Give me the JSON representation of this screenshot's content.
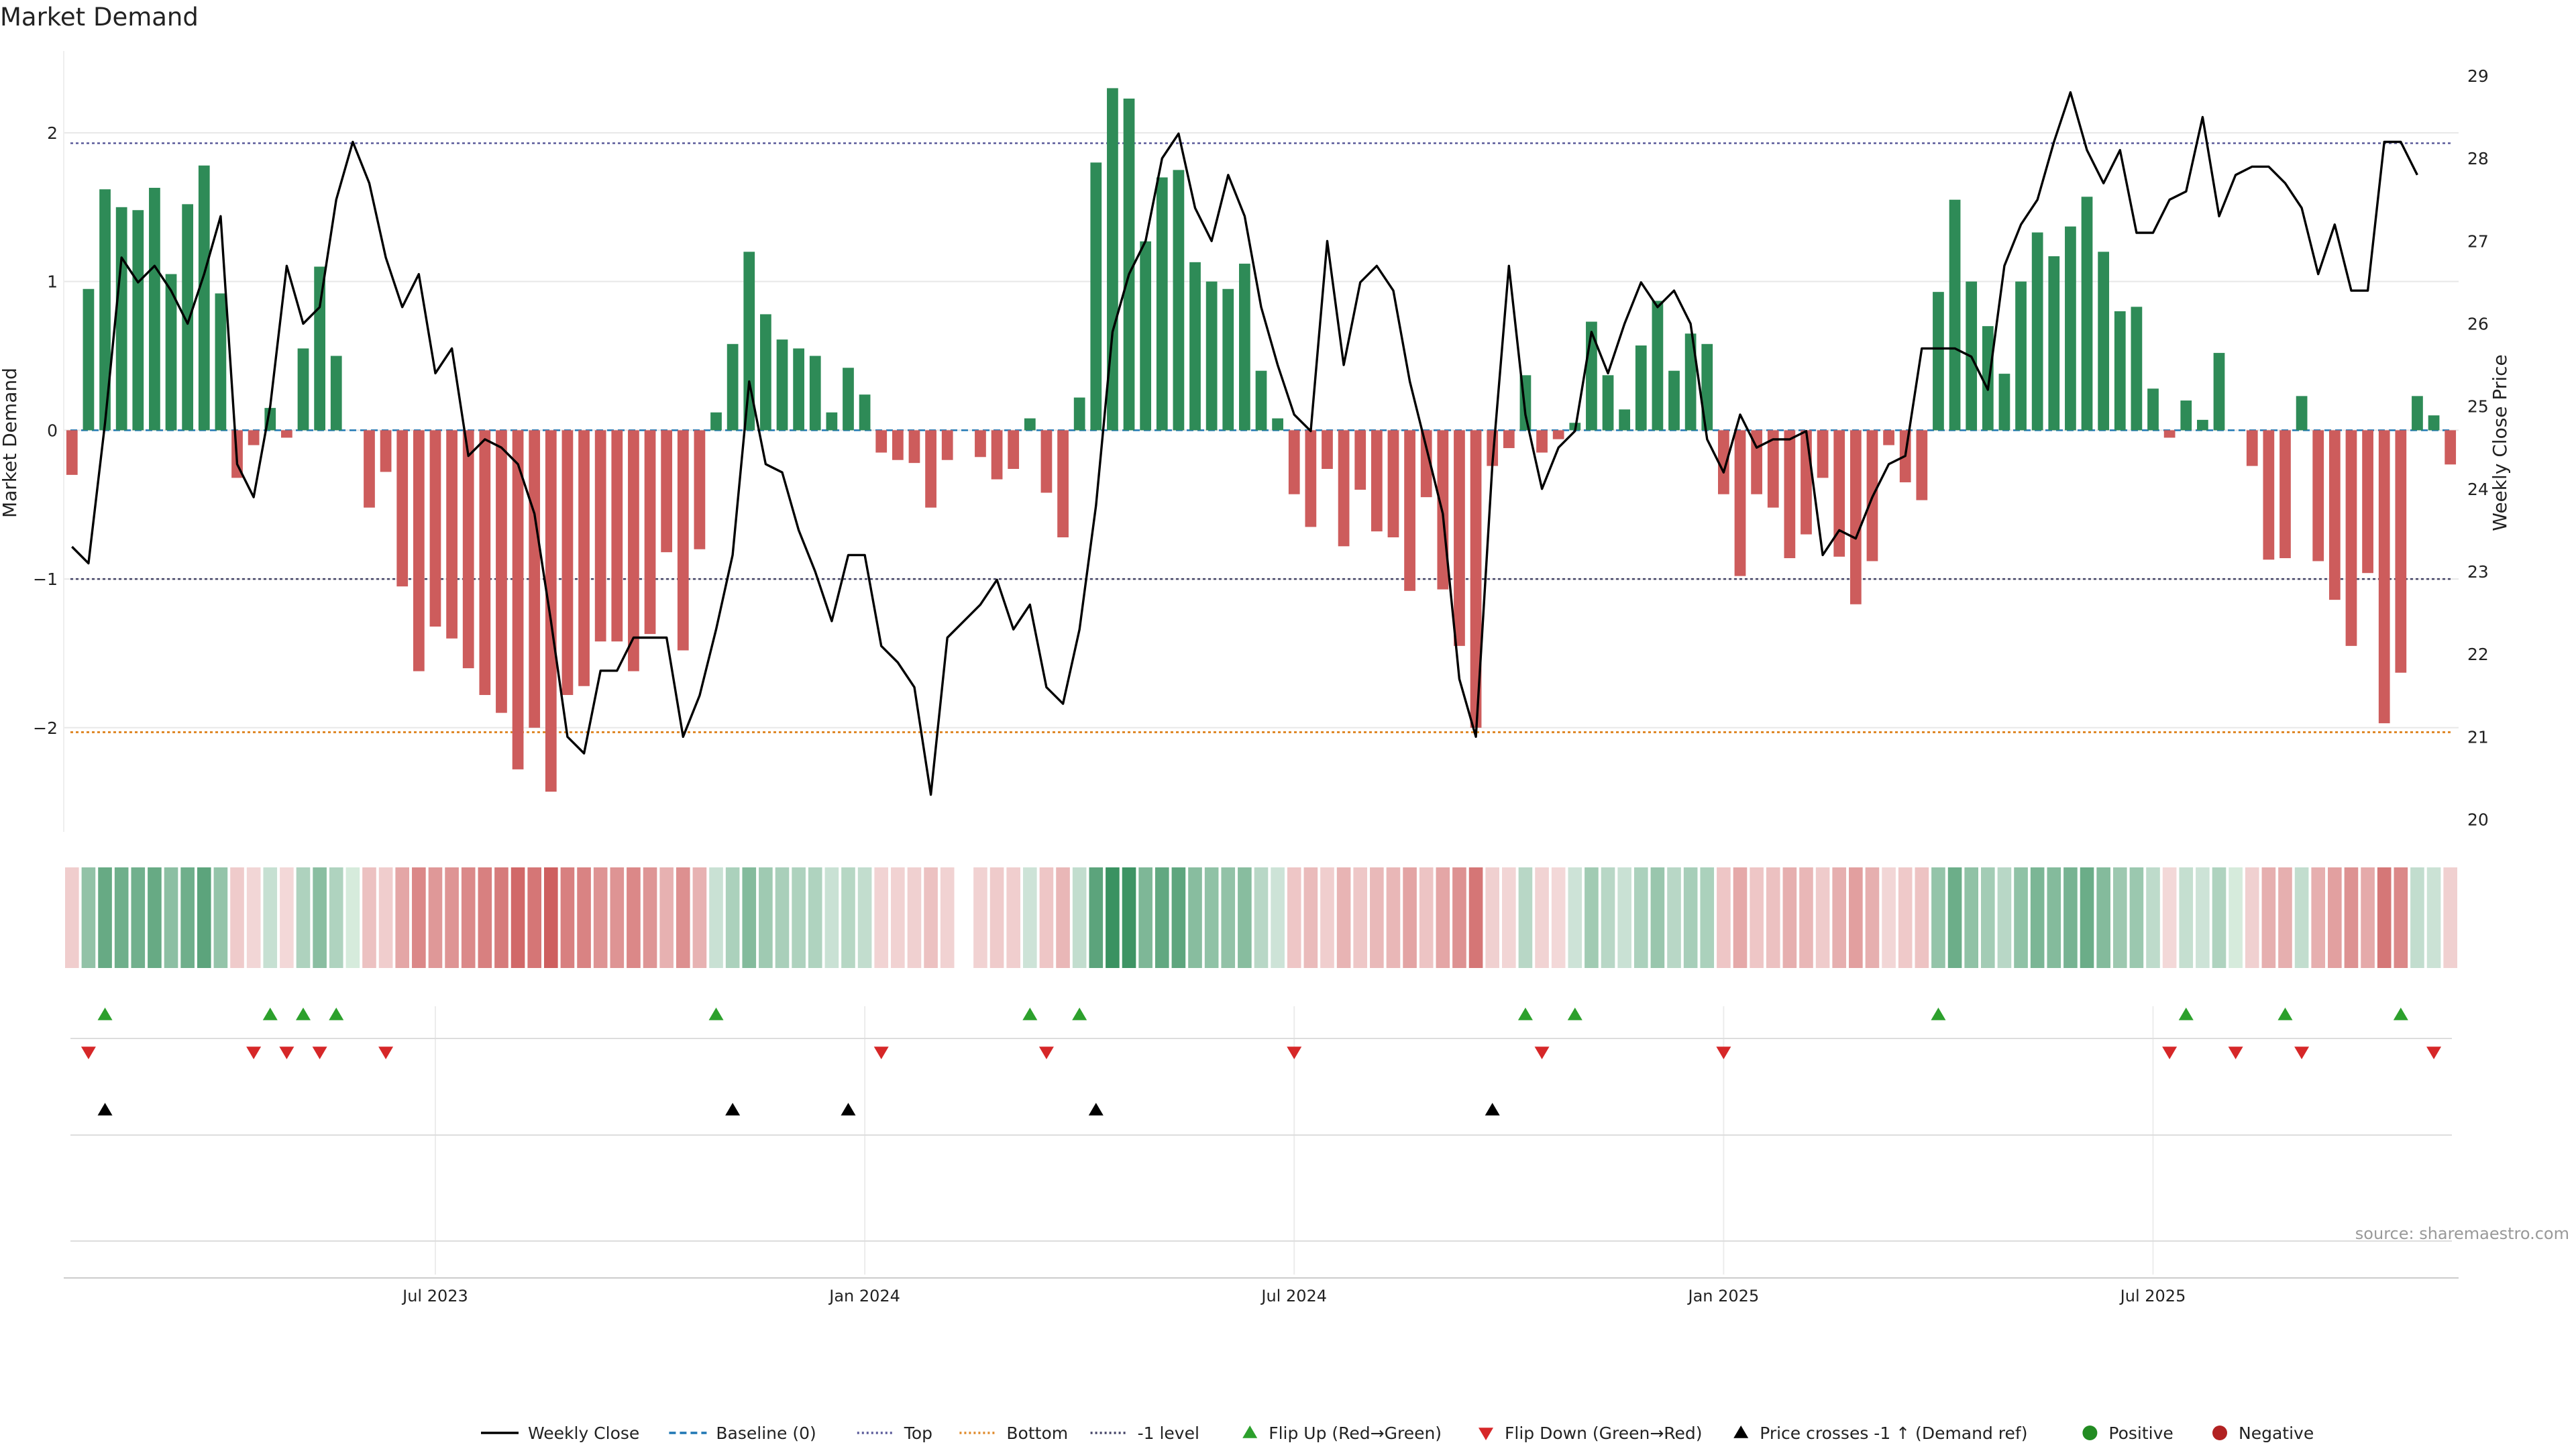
{
  "chart_data": {
    "type": "bar",
    "title": "Market Demand",
    "ylabel": "Market Demand",
    "y2label": "Weekly Close Price",
    "ylim": [
      -2.7,
      2.55
    ],
    "y2lim": [
      19.85,
      29.3
    ],
    "yticks": [
      {
        "v": 2,
        "t": "2"
      },
      {
        "v": 1,
        "t": "1"
      },
      {
        "v": 0,
        "t": "0"
      },
      {
        "v": -1,
        "t": "−1"
      },
      {
        "v": -2,
        "t": "−2"
      }
    ],
    "y2ticks": [
      "29",
      "28",
      "27",
      "26",
      "25",
      "24",
      "23",
      "22",
      "21",
      "20"
    ],
    "xticks": [
      {
        "i": 22,
        "label": "Jul 2023"
      },
      {
        "i": 48,
        "label": "Jan 2024"
      },
      {
        "i": 74,
        "label": "Jul 2024"
      },
      {
        "i": 100,
        "label": "Jan 2025"
      },
      {
        "i": 126,
        "label": "Jul 2025"
      }
    ],
    "grid": true,
    "legend_position": "bottom",
    "reference_lines": {
      "top": 1.93,
      "bottom": -2.03,
      "minus_one": -1
    },
    "demand": [
      -0.3,
      0.95,
      1.62,
      1.5,
      1.48,
      1.63,
      1.05,
      1.52,
      1.78,
      0.92,
      -0.32,
      -0.1,
      0.15,
      -0.05,
      0.55,
      1.1,
      0.5,
      0.0,
      -0.52,
      -0.28,
      -1.05,
      -1.62,
      -1.32,
      -1.4,
      -1.6,
      -1.78,
      -1.9,
      -2.28,
      -2.0,
      -2.43,
      -1.78,
      -1.72,
      -1.42,
      -1.42,
      -1.62,
      -1.37,
      -0.82,
      -1.48,
      -0.8,
      0.12,
      0.58,
      1.2,
      0.78,
      0.61,
      0.55,
      0.5,
      0.12,
      0.42,
      0.24,
      -0.15,
      -0.2,
      -0.22,
      -0.52,
      -0.2,
      null,
      -0.18,
      -0.33,
      -0.26,
      0.08,
      -0.42,
      -0.72,
      0.22,
      1.8,
      2.3,
      2.23,
      1.27,
      1.7,
      1.75,
      1.13,
      1.0,
      0.95,
      1.12,
      0.4,
      0.08,
      -0.43,
      -0.65,
      -0.26,
      -0.78,
      -0.4,
      -0.68,
      -0.72,
      -1.08,
      -0.45,
      -1.07,
      -1.45,
      -2.0,
      -0.24,
      -0.12,
      0.37,
      -0.15,
      -0.06,
      0.05,
      0.73,
      0.37,
      0.14,
      0.57,
      0.87,
      0.4,
      0.65,
      0.58,
      -0.43,
      -0.98,
      -0.43,
      -0.52,
      -0.86,
      -0.7,
      -0.32,
      -0.85,
      -1.17,
      -0.88,
      -0.1,
      -0.35,
      -0.47,
      0.93,
      1.55,
      1.0,
      0.7,
      0.38,
      1.0,
      1.33,
      1.17,
      1.37,
      1.57,
      1.2,
      0.8,
      0.83,
      0.28,
      -0.05,
      0.2,
      0.07,
      0.52,
      0.0,
      -0.24,
      -0.87,
      -0.86,
      0.23,
      -0.88,
      -1.14,
      -1.45,
      -0.96,
      -1.97,
      -1.63,
      0.23,
      0.1,
      -0.23
    ],
    "price": [
      23.3,
      23.1,
      24.8,
      26.8,
      26.5,
      26.7,
      26.4,
      26.0,
      26.6,
      27.3,
      24.3,
      23.9,
      25.0,
      26.7,
      26.0,
      26.2,
      27.5,
      28.2,
      27.7,
      26.8,
      26.2,
      26.6,
      25.4,
      25.7,
      24.4,
      24.6,
      24.5,
      24.3,
      23.7,
      22.4,
      21.0,
      20.8,
      21.8,
      21.8,
      22.2,
      22.2,
      22.2,
      21.0,
      21.5,
      22.3,
      23.2,
      25.3,
      24.3,
      24.2,
      23.5,
      23.0,
      22.4,
      23.2,
      23.2,
      22.1,
      21.9,
      21.6,
      20.3,
      22.2,
      22.4,
      22.6,
      22.9,
      22.3,
      22.6,
      21.6,
      21.4,
      22.3,
      23.8,
      25.9,
      26.6,
      27.0,
      28.0,
      28.3,
      27.4,
      27.0,
      27.8,
      27.3,
      26.2,
      25.5,
      24.9,
      24.7,
      27.0,
      25.5,
      26.5,
      26.7,
      26.4,
      25.3,
      24.5,
      23.7,
      21.7,
      21.0,
      24.3,
      26.7,
      24.9,
      24.0,
      24.5,
      24.7,
      25.9,
      25.4,
      26.0,
      26.5,
      26.2,
      26.4,
      26.0,
      24.6,
      24.2,
      24.9,
      24.5,
      24.6,
      24.6,
      24.7,
      23.2,
      23.5,
      23.4,
      23.9,
      24.3,
      24.4,
      25.7,
      25.7,
      25.7,
      25.6,
      25.2,
      26.7,
      27.2,
      27.5,
      28.2,
      28.8,
      28.1,
      27.7,
      28.1,
      27.1,
      27.1,
      27.5,
      27.6,
      28.5,
      27.3,
      27.8,
      27.9,
      27.9,
      27.7,
      27.4,
      26.6,
      27.2,
      26.4,
      26.4,
      28.2,
      28.2,
      27.8
    ],
    "series": [
      {
        "name": "Weekly Close"
      },
      {
        "name": "Baseline (0)"
      },
      {
        "name": "Top"
      },
      {
        "name": "Bottom"
      },
      {
        "name": "-1 level"
      }
    ],
    "flip_up_weeks": [
      2,
      12,
      14,
      16,
      39,
      58,
      61,
      88,
      91,
      113,
      128,
      134,
      141
    ],
    "flip_down_weeks": [
      1,
      11,
      13,
      15,
      19,
      49,
      59,
      74,
      89,
      100,
      127,
      131,
      135,
      143
    ],
    "cross_weeks": [
      2,
      40,
      47,
      62,
      86
    ]
  },
  "legend": [
    {
      "label": "Weekly Close",
      "kind": "line",
      "color": "#000000",
      "dash": ""
    },
    {
      "label": "Baseline (0)",
      "kind": "line",
      "color": "#1f77b4",
      "dash": "10,6"
    },
    {
      "label": "Top",
      "kind": "line",
      "color": "#5b5b9a",
      "dash": "3,4"
    },
    {
      "label": "Bottom",
      "kind": "line",
      "color": "#e08a2a",
      "dash": "3,4"
    },
    {
      "label": "-1 level",
      "kind": "line",
      "color": "#444466",
      "dash": "3,4"
    },
    {
      "label": "Flip Up (Red→Green)",
      "kind": "tri-up",
      "color": "#2ca02c"
    },
    {
      "label": "Flip Down (Green→Red)",
      "kind": "tri-down",
      "color": "#d62728"
    },
    {
      "label": "Price crosses -1 ↑ (Demand ref)",
      "kind": "tri-up",
      "color": "#000000"
    },
    {
      "label": "Positive",
      "kind": "dot",
      "color": "#228b22"
    },
    {
      "label": "Negative",
      "kind": "dot",
      "color": "#b22222"
    }
  ],
  "colors": {
    "positive": "#2e8b57",
    "negative": "#cd5c5c",
    "price": "#000000",
    "top": "#5b5b9a",
    "bottom": "#e08a2a",
    "minus_one": "#444466",
    "grid": "#e8e8e8"
  },
  "source": "source: sharemaestro.com"
}
